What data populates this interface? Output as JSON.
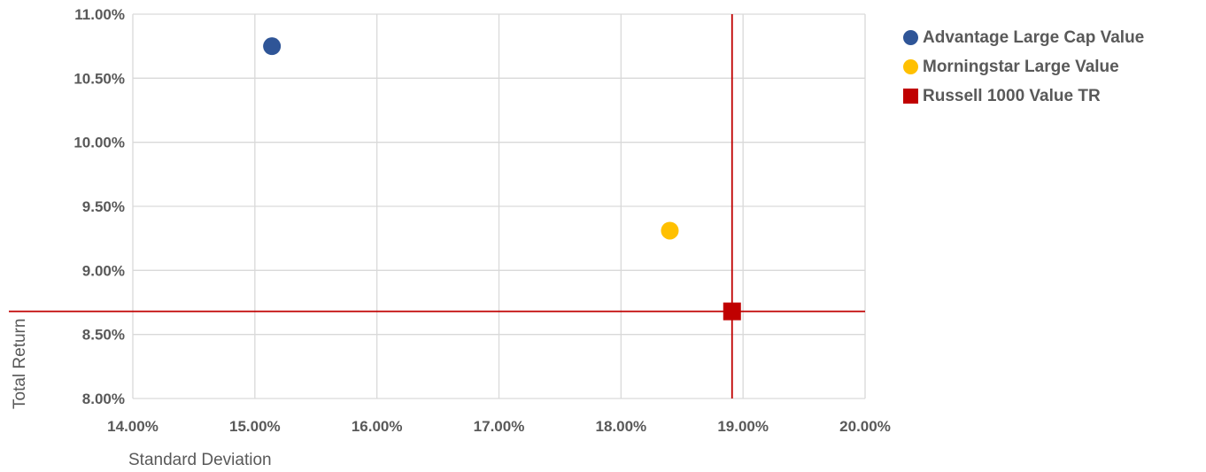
{
  "chart_data": {
    "type": "scatter",
    "xlabel": "Standard Deviation",
    "ylabel": "Total Return",
    "xlim": [
      14,
      20
    ],
    "ylim": [
      8,
      11
    ],
    "x_ticks": [
      14,
      15,
      16,
      17,
      18,
      19,
      20
    ],
    "y_ticks": [
      8,
      8.5,
      9,
      9.5,
      10,
      10.5,
      11
    ],
    "x_tick_labels": [
      "14.00%",
      "15.00%",
      "16.00%",
      "17.00%",
      "18.00%",
      "19.00%",
      "20.00%"
    ],
    "y_tick_labels": [
      "8.00%",
      "8.50%",
      "9.00%",
      "9.50%",
      "10.00%",
      "10.50%",
      "11.00%"
    ],
    "grid": true,
    "legend_position": "top-right",
    "series": [
      {
        "name": "Advantage Large Cap Value",
        "marker": "circle",
        "color": "#2f5597",
        "x": 15.14,
        "y": 10.75
      },
      {
        "name": "Morningstar Large Value",
        "marker": "circle",
        "color": "#ffc000",
        "x": 18.4,
        "y": 9.31
      },
      {
        "name": "Russell 1000 Value TR",
        "marker": "square",
        "color": "#c00000",
        "x": 18.91,
        "y": 8.68
      }
    ],
    "reference_lines": {
      "x": 18.91,
      "y": 8.68,
      "color": "#c00000"
    }
  }
}
